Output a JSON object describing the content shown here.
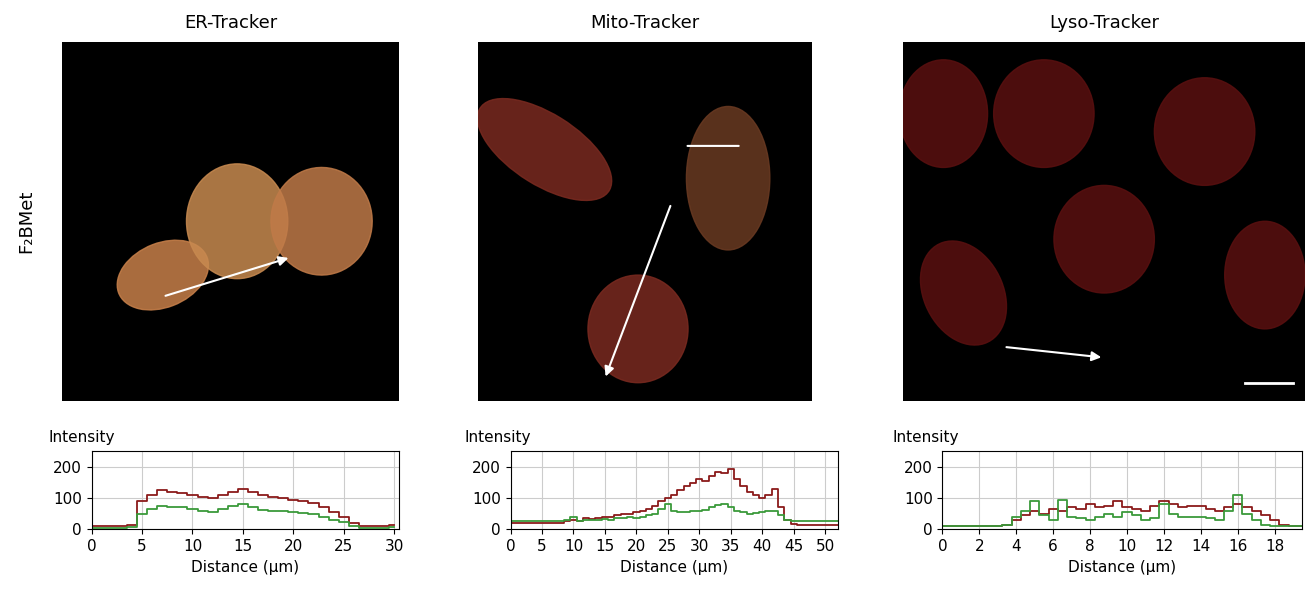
{
  "figure": {
    "row_label": "F₂BMet"
  },
  "chart_data": [
    {
      "type": "line",
      "title": "ER-Tracker",
      "y_label": "Intensity",
      "x_label": "Distance (μm)",
      "x": [
        0,
        1,
        2,
        3,
        4,
        5,
        6,
        7,
        8,
        9,
        10,
        11,
        12,
        13,
        14,
        15,
        16,
        17,
        18,
        19,
        20,
        21,
        22,
        23,
        24,
        25,
        26,
        27,
        28,
        29,
        30
      ],
      "series": [
        {
          "color": "#8b1a1a",
          "values": [
            10,
            10,
            10,
            10,
            15,
            90,
            110,
            125,
            120,
            115,
            110,
            105,
            100,
            110,
            120,
            128,
            120,
            110,
            105,
            100,
            95,
            90,
            85,
            70,
            55,
            40,
            20,
            10,
            10,
            10,
            15
          ]
        },
        {
          "color": "#3a9a3a",
          "values": [
            5,
            5,
            5,
            5,
            8,
            50,
            65,
            75,
            72,
            70,
            65,
            60,
            55,
            65,
            75,
            80,
            70,
            62,
            60,
            58,
            55,
            52,
            48,
            40,
            30,
            22,
            10,
            5,
            5,
            5,
            8
          ]
        }
      ],
      "xlim": [
        0,
        30.5
      ],
      "ylim": [
        0,
        250
      ],
      "xticks": [
        0,
        5,
        10,
        15,
        20,
        25,
        30
      ],
      "yticks": [
        0,
        100,
        200
      ],
      "grid": true,
      "line_style": "steps"
    },
    {
      "type": "line",
      "title": "Mito-Tracker",
      "y_label": "Intensity",
      "x_label": "Distance (μm)",
      "x": [
        0,
        1,
        2,
        3,
        4,
        5,
        6,
        7,
        8,
        9,
        10,
        11,
        12,
        13,
        14,
        15,
        16,
        17,
        18,
        19,
        20,
        21,
        22,
        23,
        24,
        25,
        26,
        27,
        28,
        29,
        30,
        31,
        32,
        33,
        34,
        35,
        36,
        37,
        38,
        39,
        40,
        41,
        42,
        43,
        44,
        45,
        46,
        47,
        48,
        49,
        50,
        51,
        52
      ],
      "series": [
        {
          "color": "#8b1a1a",
          "values": [
            20,
            20,
            20,
            20,
            20,
            20,
            20,
            20,
            20,
            25,
            30,
            28,
            35,
            32,
            35,
            38,
            40,
            45,
            50,
            48,
            55,
            60,
            65,
            75,
            90,
            100,
            110,
            125,
            140,
            150,
            160,
            155,
            170,
            185,
            180,
            195,
            160,
            140,
            120,
            110,
            100,
            110,
            130,
            70,
            30,
            18,
            15,
            15,
            15,
            15,
            15,
            15,
            15
          ]
        },
        {
          "color": "#3a9a3a",
          "values": [
            25,
            25,
            25,
            25,
            25,
            25,
            25,
            25,
            25,
            30,
            38,
            28,
            30,
            30,
            30,
            32,
            30,
            35,
            35,
            38,
            35,
            40,
            45,
            50,
            65,
            80,
            60,
            55,
            55,
            58,
            60,
            62,
            70,
            78,
            82,
            70,
            60,
            55,
            50,
            52,
            55,
            58,
            60,
            45,
            30,
            25,
            25,
            25,
            25,
            25,
            25,
            25,
            25
          ]
        }
      ],
      "xlim": [
        0,
        52
      ],
      "ylim": [
        0,
        250
      ],
      "xticks": [
        0,
        5,
        10,
        15,
        20,
        25,
        30,
        35,
        40,
        45,
        50
      ],
      "yticks": [
        0,
        100,
        200
      ],
      "grid": true,
      "line_style": "steps"
    },
    {
      "type": "line",
      "title": "Lyso-Tracker",
      "y_label": "Intensity",
      "x_label": "Distance (μm)",
      "x": [
        0,
        0.5,
        1,
        1.5,
        2,
        2.5,
        3,
        3.5,
        4,
        4.5,
        5,
        5.5,
        6,
        6.5,
        7,
        7.5,
        8,
        8.5,
        9,
        9.5,
        10,
        10.5,
        11,
        11.5,
        12,
        12.5,
        13,
        13.5,
        14,
        14.5,
        15,
        15.5,
        16,
        16.5,
        17,
        17.5,
        18,
        18.5,
        19,
        19.5
      ],
      "series": [
        {
          "color": "#8b1a1a",
          "values": [
            10,
            10,
            10,
            10,
            10,
            10,
            10,
            15,
            30,
            45,
            60,
            50,
            65,
            60,
            70,
            65,
            80,
            70,
            75,
            90,
            70,
            65,
            60,
            75,
            90,
            80,
            70,
            75,
            75,
            65,
            60,
            70,
            80,
            70,
            60,
            45,
            30,
            15,
            10,
            10
          ]
        },
        {
          "color": "#3a9a3a",
          "values": [
            10,
            10,
            10,
            10,
            10,
            10,
            10,
            12,
            40,
            60,
            90,
            45,
            30,
            95,
            40,
            35,
            30,
            40,
            50,
            40,
            55,
            45,
            30,
            35,
            80,
            50,
            40,
            40,
            40,
            35,
            30,
            60,
            110,
            50,
            30,
            15,
            10,
            10,
            10,
            10
          ]
        }
      ],
      "xlim": [
        0,
        19.5
      ],
      "ylim": [
        0,
        250
      ],
      "xticks": [
        0,
        2,
        4,
        6,
        8,
        10,
        12,
        14,
        16,
        18
      ],
      "yticks": [
        0,
        100,
        200
      ],
      "grid": true,
      "line_style": "steps"
    }
  ]
}
